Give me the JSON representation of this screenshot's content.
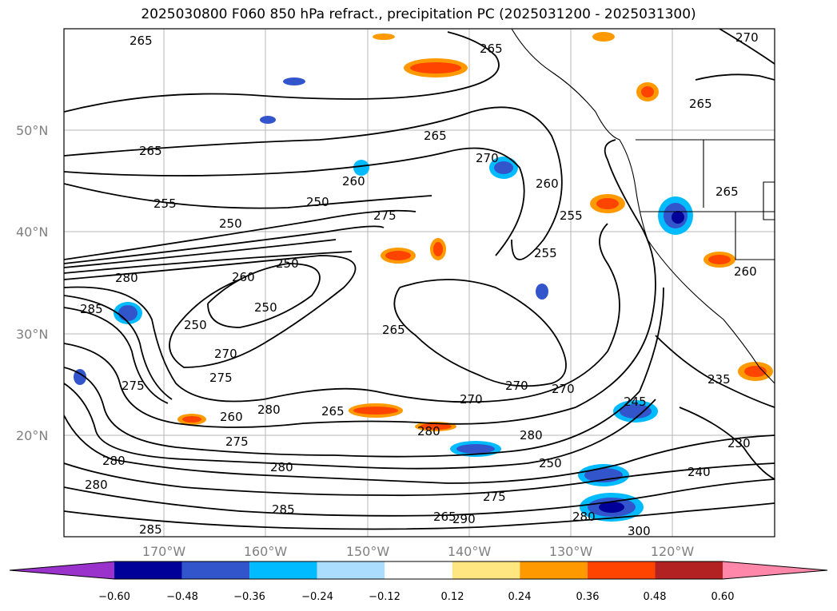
{
  "title": "2025030800 F060 850 hPa refract., precipitation PC (2025031200 - 2025031300)",
  "lat_labels": [
    "50°N",
    "40°N",
    "30°N",
    "20°N"
  ],
  "lon_labels": [
    "170°W",
    "160°W",
    "150°W",
    "140°W",
    "130°W",
    "120°W"
  ],
  "colorbar": {
    "ticks": [
      "−0.60",
      "−0.48",
      "−0.36",
      "−0.24",
      "−0.12",
      "0.12",
      "0.24",
      "0.36",
      "0.48",
      "0.60"
    ],
    "colors": [
      "#9933cc",
      "#000099",
      "#3355cc",
      "#00bbff",
      "#aaddff",
      "#ffffff",
      "#ffe680",
      "#ff9900",
      "#ff4400",
      "#b22222",
      "#ff88aa"
    ]
  },
  "contour_labels": [
    "265",
    "265",
    "265",
    "270",
    "265",
    "260",
    "270",
    "265",
    "255",
    "250",
    "260",
    "250",
    "275",
    "255",
    "260",
    "250",
    "280",
    "255",
    "265",
    "285",
    "250",
    "250",
    "270",
    "275",
    "275",
    "270",
    "270",
    "270",
    "245",
    "260",
    "280",
    "265",
    "280",
    "280",
    "280",
    "275",
    "250",
    "280",
    "285",
    "280",
    "285",
    "265",
    "290",
    "275",
    "280",
    "300",
    "240",
    "230",
    "235",
    "260",
    "265"
  ]
}
